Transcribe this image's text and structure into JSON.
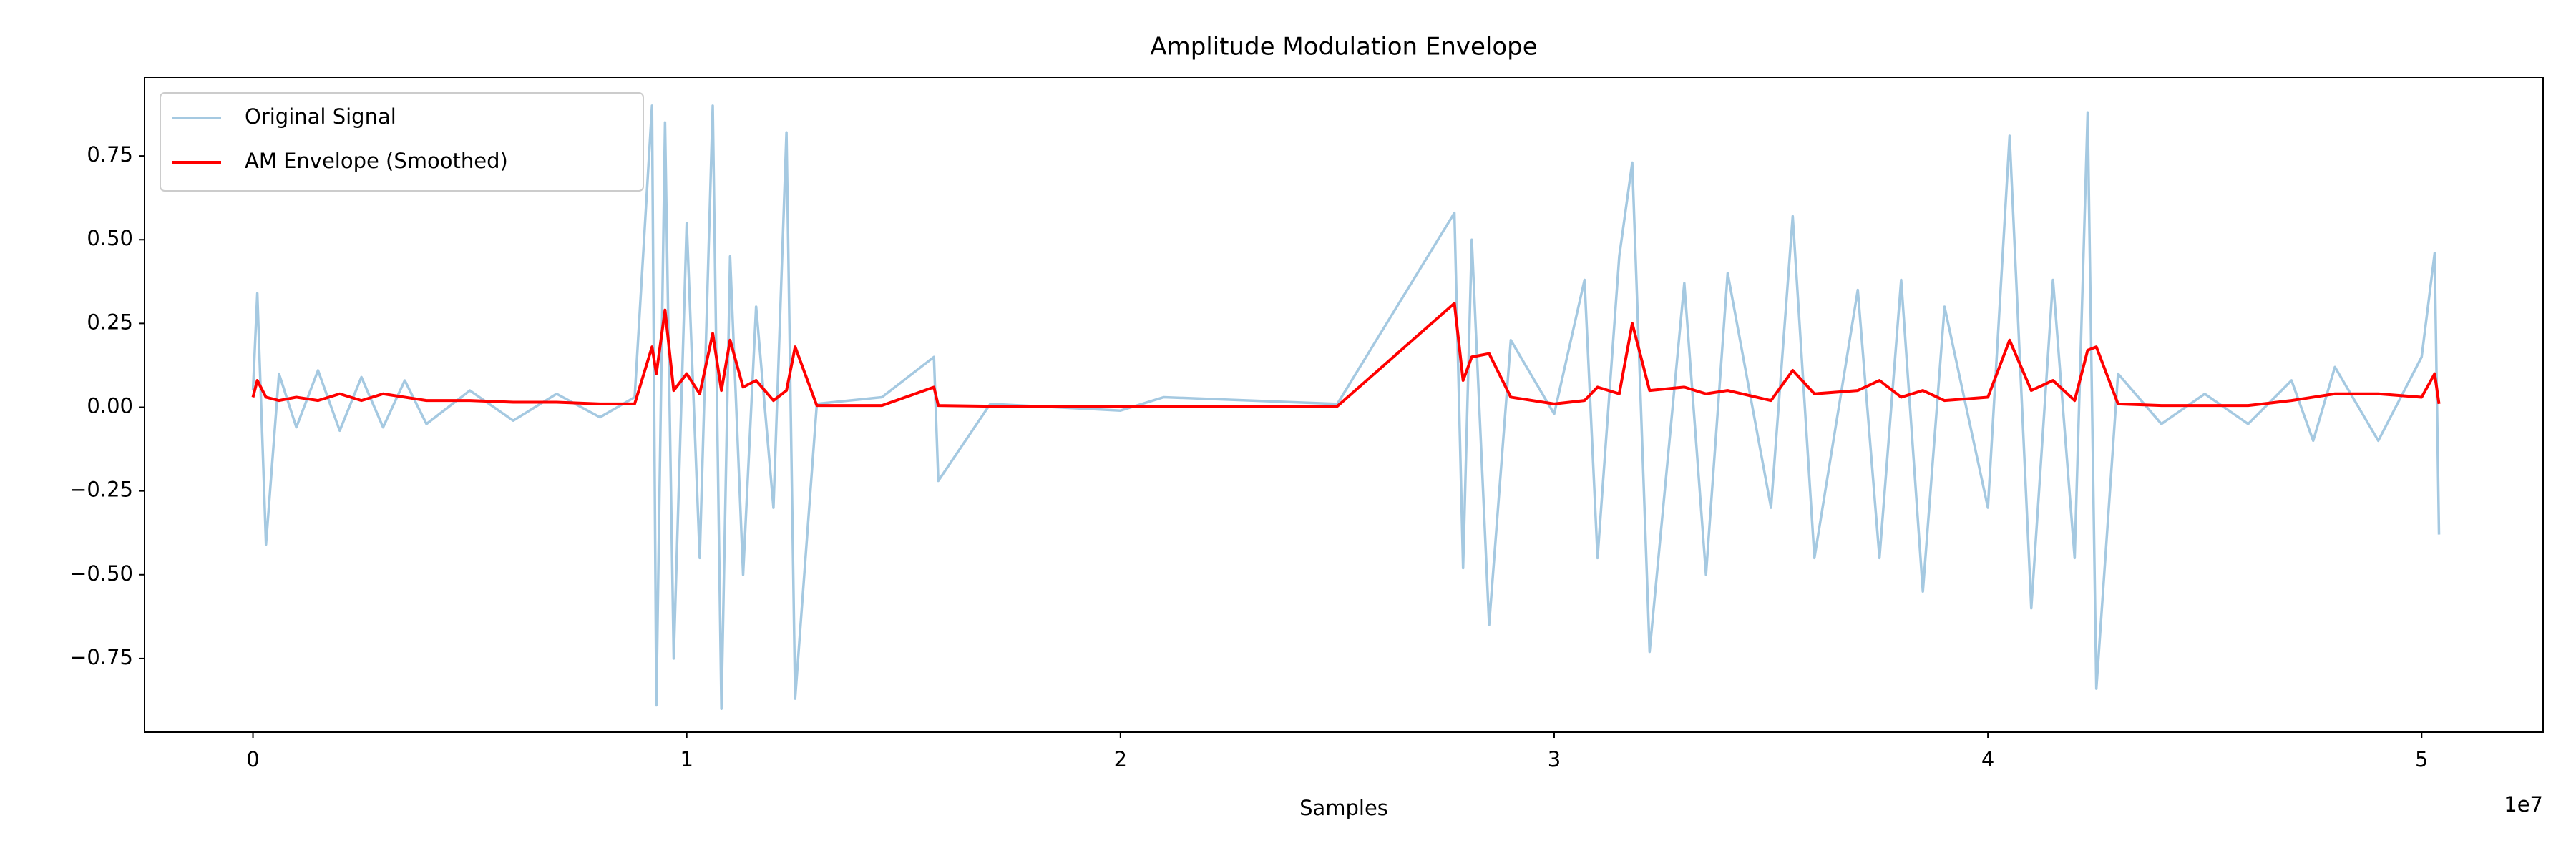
{
  "chart_data": {
    "type": "line",
    "title": "Amplitude Modulation Envelope",
    "x_label": "Samples",
    "x_offset_label": "1e7",
    "x": [
      0,
      100000,
      300000,
      600000,
      1000000,
      1500000,
      2000000,
      2500000,
      3000000,
      3500000,
      4000000,
      5000000,
      6000000,
      7000000,
      8000000,
      8800000,
      9200000,
      9300000,
      9500000,
      9700000,
      10000000,
      10300000,
      10600000,
      10800000,
      11000000,
      11300000,
      11600000,
      12000000,
      12300000,
      12500000,
      13000000,
      14500000,
      15700000,
      15800000,
      17000000,
      20000000,
      21000000,
      25000000,
      27700000,
      27900000,
      28100000,
      28500000,
      29000000,
      30000000,
      30700000,
      31000000,
      31500000,
      31800000,
      32200000,
      33000000,
      33500000,
      34000000,
      35000000,
      35500000,
      36000000,
      37000000,
      37500000,
      38000000,
      38500000,
      39000000,
      40000000,
      40500000,
      41000000,
      41500000,
      42000000,
      42300000,
      42500000,
      43000000,
      44000000,
      45000000,
      46000000,
      47000000,
      47500000,
      48000000,
      49000000,
      50000000,
      50300000,
      50400000
    ],
    "series": [
      {
        "name": "Original Signal",
        "color": "#a5c9e1",
        "values": [
          0.05,
          0.34,
          -0.41,
          0.1,
          -0.06,
          0.11,
          -0.07,
          0.09,
          -0.06,
          0.08,
          -0.05,
          0.05,
          -0.04,
          0.04,
          -0.03,
          0.03,
          0.9,
          -0.89,
          0.85,
          -0.75,
          0.55,
          -0.45,
          0.9,
          -0.9,
          0.45,
          -0.5,
          0.3,
          -0.3,
          0.82,
          -0.87,
          0.01,
          0.03,
          0.15,
          -0.22,
          0.01,
          -0.01,
          0.03,
          0.01,
          0.58,
          -0.48,
          0.5,
          -0.65,
          0.2,
          -0.02,
          0.38,
          -0.45,
          0.45,
          0.73,
          -0.73,
          0.37,
          -0.5,
          0.4,
          -0.3,
          0.57,
          -0.45,
          0.35,
          -0.45,
          0.38,
          -0.55,
          0.3,
          -0.3,
          0.81,
          -0.6,
          0.38,
          -0.45,
          0.88,
          -0.84,
          0.1,
          -0.05,
          0.04,
          -0.05,
          0.08,
          -0.1,
          0.12,
          -0.1,
          0.15,
          0.46,
          -0.38
        ]
      },
      {
        "name": "AM Envelope (Smoothed)",
        "color": "#ff0000",
        "values": [
          0.03,
          0.08,
          0.03,
          0.02,
          0.03,
          0.02,
          0.04,
          0.02,
          0.04,
          0.03,
          0.02,
          0.02,
          0.015,
          0.015,
          0.01,
          0.01,
          0.18,
          0.1,
          0.29,
          0.05,
          0.1,
          0.04,
          0.22,
          0.05,
          0.2,
          0.06,
          0.08,
          0.02,
          0.05,
          0.18,
          0.005,
          0.005,
          0.06,
          0.005,
          0.003,
          0.003,
          0.003,
          0.003,
          0.31,
          0.08,
          0.15,
          0.16,
          0.03,
          0.01,
          0.02,
          0.06,
          0.04,
          0.25,
          0.05,
          0.06,
          0.04,
          0.05,
          0.02,
          0.11,
          0.04,
          0.05,
          0.08,
          0.03,
          0.05,
          0.02,
          0.03,
          0.2,
          0.05,
          0.08,
          0.02,
          0.17,
          0.18,
          0.01,
          0.005,
          0.005,
          0.005,
          0.02,
          0.03,
          0.04,
          0.04,
          0.03,
          0.1,
          0.01
        ]
      }
    ],
    "xlim": [
      -2500000,
      52800000
    ],
    "xticks": [
      0,
      {
        "value": 10000000,
        "label": "1"
      },
      {
        "value": 20000000,
        "label": "2"
      },
      {
        "value": 30000000,
        "label": "3"
      },
      {
        "value": 40000000,
        "label": "4"
      },
      {
        "value": 50000000,
        "label": "5"
      }
    ],
    "ylim": [
      -0.97,
      0.985
    ],
    "yticks": [
      {
        "value": -0.75,
        "label": "−0.75"
      },
      {
        "value": -0.5,
        "label": "−0.50"
      },
      {
        "value": -0.25,
        "label": "−0.25"
      },
      {
        "value": 0,
        "label": "0.00"
      },
      0.25,
      {
        "value": 0.5,
        "label": "0.50"
      },
      0.75
    ],
    "legend": "upper left",
    "grid": false
  }
}
